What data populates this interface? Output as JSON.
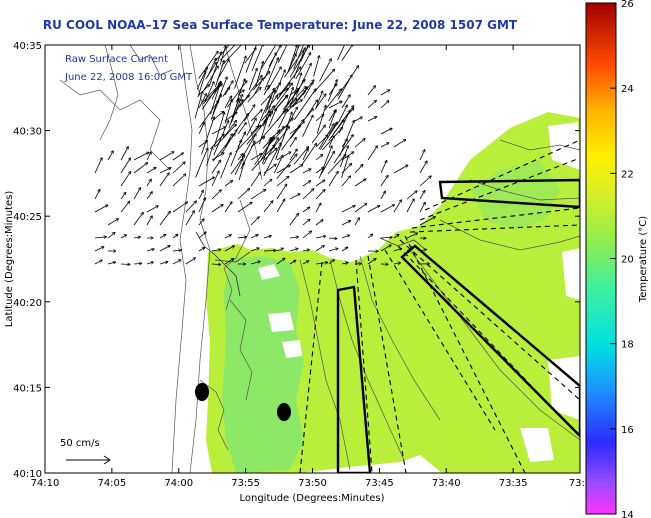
{
  "title": "RU COOL   NOAA–17  Sea Surface Temperature:  June 22, 2008 1507 GMT",
  "legend": {
    "line1": "Raw Surface Current",
    "line2": "June 22, 2008 16:00 GMT"
  },
  "scale_label": "50 cm/s",
  "axes": {
    "xlabel": "Longitude (Degrees:Minutes)",
    "ylabel": "Latitude (Degrees:Minutes)",
    "x_ticks": [
      "74:10",
      "74:05",
      "74:00",
      "73:55",
      "73:50",
      "73:45",
      "73:40",
      "73:35",
      "73:3"
    ],
    "y_ticks": [
      "40:35",
      "40:30",
      "40:25",
      "40:20",
      "40:15",
      "40:10"
    ]
  },
  "colorbar": {
    "label": "Temperature (°C)",
    "ticks": [
      "26",
      "24",
      "22",
      "20",
      "18",
      "16",
      "14"
    ],
    "range": [
      14,
      26
    ]
  },
  "colors": {
    "sst_main": "#b9ee3a",
    "sst_cool": "#8ee868",
    "title": "#1f3aa8"
  }
}
